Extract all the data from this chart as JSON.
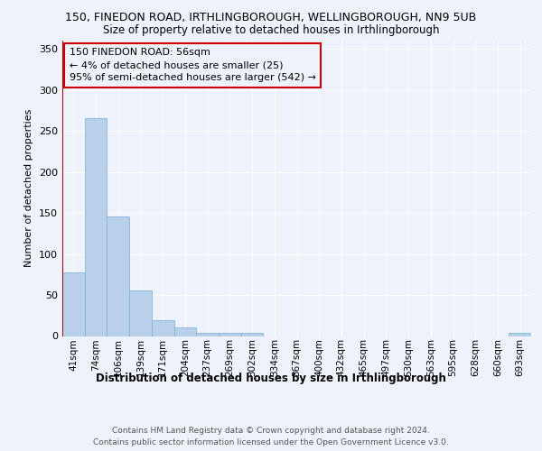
{
  "title1": "150, FINEDON ROAD, IRTHLINGBOROUGH, WELLINGBOROUGH, NN9 5UB",
  "title2": "Size of property relative to detached houses in Irthlingborough",
  "xlabel": "Distribution of detached houses by size in Irthlingborough",
  "ylabel": "Number of detached properties",
  "categories": [
    "41sqm",
    "74sqm",
    "106sqm",
    "139sqm",
    "171sqm",
    "204sqm",
    "237sqm",
    "269sqm",
    "302sqm",
    "334sqm",
    "367sqm",
    "400sqm",
    "432sqm",
    "465sqm",
    "497sqm",
    "530sqm",
    "563sqm",
    "595sqm",
    "628sqm",
    "660sqm",
    "693sqm"
  ],
  "values": [
    78,
    265,
    146,
    56,
    19,
    10,
    4,
    4,
    4,
    0,
    0,
    0,
    0,
    0,
    0,
    0,
    0,
    0,
    0,
    0,
    4
  ],
  "bar_color": "#b8d0ea",
  "bar_edge_color": "#7aaed4",
  "highlight_color": "#cc0000",
  "annotation_line1": "150 FINEDON ROAD: 56sqm",
  "annotation_line2": "← 4% of detached houses are smaller (25)",
  "annotation_line3": "95% of semi-detached houses are larger (542) →",
  "ylim": [
    0,
    360
  ],
  "yticks": [
    0,
    50,
    100,
    150,
    200,
    250,
    300,
    350
  ],
  "footer1": "Contains HM Land Registry data © Crown copyright and database right 2024.",
  "footer2": "Contains public sector information licensed under the Open Government Licence v3.0.",
  "background_color": "#eef2fb",
  "grid_color": "#ffffff",
  "bar_width": 1.0
}
